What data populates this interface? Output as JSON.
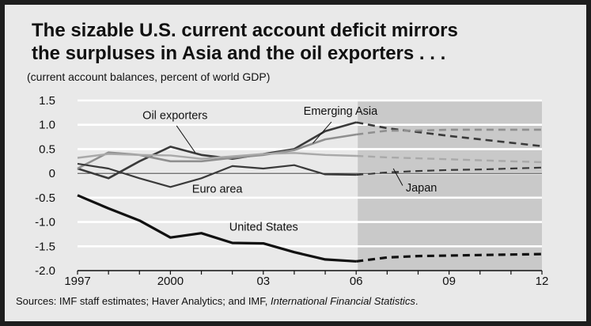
{
  "title_line1": "The sizable U.S. current account deficit mirrors",
  "title_line2": "the surpluses in Asia and the oil exporters . . .",
  "subtitle": "(current account balances, percent of world GDP)",
  "source_text": "Sources: IMF staff estimates; Haver Analytics; and IMF, ",
  "source_italic": "International Financial Statistics",
  "source_end": ".",
  "colors": {
    "background": "#e9e9e9",
    "projection_shade": "#c9c9c9",
    "united_states": "#111111",
    "emerging_asia": "#3a3a3a",
    "oil_exporters": "#8f8f8f",
    "euro_area": "#3a3a3a",
    "japan": "#a9a9a9"
  },
  "chart_data": {
    "type": "line",
    "title": "The sizable U.S. current account deficit mirrors the surpluses in Asia and the oil exporters . . .",
    "subtitle": "(current account balances, percent of world GDP)",
    "xlabel": "",
    "ylabel": "",
    "xlim": [
      1997,
      2012
    ],
    "ylim": [
      -2.0,
      1.5
    ],
    "x_ticks": [
      1997,
      2000,
      2003,
      2006,
      2009,
      2012
    ],
    "x_tick_labels": [
      "1997",
      "2000",
      "03",
      "06",
      "09",
      "12"
    ],
    "y_ticks": [
      1.5,
      1.0,
      0.5,
      0,
      -0.5,
      -1.0,
      -1.5,
      -2.0
    ],
    "y_tick_labels": [
      "1.5",
      "1.0",
      "0.5",
      "0",
      "-0.5",
      "-1.0",
      "-1.5",
      "-2.0"
    ],
    "grid": "horizontal",
    "projection_start": 2006,
    "projection_end": 2012,
    "series": [
      {
        "name": "United States",
        "key": "united_states",
        "x": [
          1997,
          1998,
          1999,
          2000,
          2001,
          2002,
          2003,
          2004,
          2005,
          2006
        ],
        "y": [
          -0.45,
          -0.72,
          -0.97,
          -1.32,
          -1.23,
          -1.43,
          -1.44,
          -1.62,
          -1.77,
          -1.81
        ],
        "proj_x": [
          2006,
          2007,
          2008,
          2009,
          2010,
          2011,
          2012
        ],
        "proj_y": [
          -1.81,
          -1.73,
          -1.7,
          -1.69,
          -1.68,
          -1.67,
          -1.66
        ]
      },
      {
        "name": "Emerging Asia",
        "key": "emerging_asia",
        "x": [
          1997,
          1998,
          1999,
          2000,
          2001,
          2002,
          2003,
          2004,
          2005,
          2006
        ],
        "y": [
          0.1,
          -0.1,
          0.25,
          0.55,
          0.38,
          0.3,
          0.4,
          0.5,
          0.87,
          1.05
        ],
        "proj_x": [
          2006,
          2007,
          2008,
          2009,
          2010,
          2011,
          2012
        ],
        "proj_y": [
          1.05,
          0.93,
          0.85,
          0.77,
          0.7,
          0.63,
          0.56
        ]
      },
      {
        "name": "Oil exporters",
        "key": "oil_exporters",
        "x": [
          1997,
          1998,
          1999,
          2000,
          2001,
          2002,
          2003,
          2004,
          2005,
          2006
        ],
        "y": [
          0.1,
          0.43,
          0.38,
          0.25,
          0.25,
          0.32,
          0.38,
          0.48,
          0.7,
          0.8
        ],
        "proj_x": [
          2006,
          2007,
          2008,
          2009,
          2010,
          2011,
          2012
        ],
        "proj_y": [
          0.8,
          0.88,
          0.88,
          0.9,
          0.9,
          0.9,
          0.9
        ]
      },
      {
        "name": "Euro area",
        "key": "euro_area",
        "x": [
          1997,
          1998,
          1999,
          2000,
          2001,
          2002,
          2003,
          2004,
          2005,
          2006
        ],
        "y": [
          0.2,
          0.1,
          -0.1,
          -0.28,
          -0.1,
          0.15,
          0.1,
          0.17,
          -0.02,
          -0.03
        ],
        "proj_x": [
          2006,
          2007,
          2008,
          2009,
          2010,
          2011,
          2012
        ],
        "proj_y": [
          -0.03,
          0.02,
          0.05,
          0.07,
          0.08,
          0.1,
          0.12
        ]
      },
      {
        "name": "Japan",
        "key": "japan",
        "x": [
          1997,
          1998,
          1999,
          2000,
          2001,
          2002,
          2003,
          2004,
          2005,
          2006
        ],
        "y": [
          0.32,
          0.4,
          0.38,
          0.37,
          0.3,
          0.35,
          0.4,
          0.42,
          0.38,
          0.36
        ],
        "proj_x": [
          2006,
          2007,
          2008,
          2009,
          2010,
          2011,
          2012
        ],
        "proj_y": [
          0.36,
          0.33,
          0.31,
          0.29,
          0.27,
          0.25,
          0.23
        ]
      }
    ],
    "annotations": [
      {
        "text": "Oil exporters",
        "x": 1999.1,
        "y": 1.12
      },
      {
        "text": "Emerging Asia",
        "x": 2004.3,
        "y": 1.21
      },
      {
        "text": "Euro area",
        "x": 2000.7,
        "y": -0.4
      },
      {
        "text": "Japan",
        "x": 2007.6,
        "y": -0.37
      },
      {
        "text": "United States",
        "x": 2001.9,
        "y": -1.18
      }
    ]
  }
}
